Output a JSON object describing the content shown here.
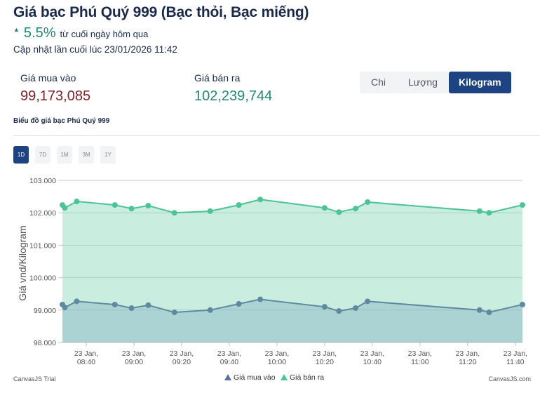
{
  "header": {
    "title": "Giá bạc Phú Quý 999 (Bạc thỏi, Bạc miếng)",
    "change_pct": "5.5%",
    "change_text": "từ cuối ngày hôm qua",
    "updated": "Cập nhật lần cuối lúc 23/01/2026 11:42"
  },
  "prices": {
    "buy_label": "Giá mua vào",
    "buy_value": "99,173,085",
    "sell_label": "Giá bán ra",
    "sell_value": "102,239,744"
  },
  "unit_tabs": [
    {
      "label": "Chi"
    },
    {
      "label": "Lượng"
    },
    {
      "label": "Kilogram",
      "active": true
    }
  ],
  "chart_heading": "Biểu đồ giá bạc Phú Quý 999",
  "range_tabs": [
    {
      "label": "1D",
      "active": true
    },
    {
      "label": "7D"
    },
    {
      "label": "1M"
    },
    {
      "label": "3M"
    },
    {
      "label": "1Y"
    }
  ],
  "chart_data": {
    "type": "area",
    "ylabel": "Giá vnd/Kilogram",
    "ylim": [
      98,
      103
    ],
    "yticks": [
      "98.000",
      "99.000",
      "100.000",
      "101.000",
      "102.000",
      "103.000"
    ],
    "xlim": [
      "08:30",
      "11:43"
    ],
    "xticks": [
      {
        "t": "08:40",
        "l1": "23 Jan,",
        "l2": "08:40"
      },
      {
        "t": "09:00",
        "l1": "23 Jan,",
        "l2": "09:00"
      },
      {
        "t": "09:20",
        "l1": "23 Jan,",
        "l2": "09:20"
      },
      {
        "t": "09:40",
        "l1": "23 Jan,",
        "l2": "09:40"
      },
      {
        "t": "10:00",
        "l1": "23 Jan,",
        "l2": "10:00"
      },
      {
        "t": "10:20",
        "l1": "23 Jan,",
        "l2": "10:20"
      },
      {
        "t": "10:40",
        "l1": "23 Jan,",
        "l2": "10:40"
      },
      {
        "t": "11:00",
        "l1": "23 Jan,",
        "l2": "11:00"
      },
      {
        "t": "11:20",
        "l1": "23 Jan,",
        "l2": "11:20"
      },
      {
        "t": "11:40",
        "l1": "23 Jan,",
        "l2": "11:40"
      }
    ],
    "x": [
      "08:30",
      "08:31",
      "08:36",
      "08:52",
      "08:59",
      "09:06",
      "09:17",
      "09:32",
      "09:44",
      "09:53",
      "10:20",
      "10:26",
      "10:33",
      "10:38",
      "11:25",
      "11:29",
      "11:43"
    ],
    "series": [
      {
        "name": "Giá bán ra",
        "color": "#4cc497",
        "fill": "#c9eee0",
        "values": [
          102.24,
          102.15,
          102.35,
          102.24,
          102.13,
          102.22,
          102.0,
          102.05,
          102.24,
          102.41,
          102.15,
          102.02,
          102.13,
          102.33,
          102.05,
          102.0,
          102.24
        ]
      },
      {
        "name": "Giá mua vào",
        "color": "#5d8aa0",
        "fill": "#acd3d3",
        "values": [
          99.17,
          99.08,
          99.27,
          99.17,
          99.06,
          99.15,
          98.93,
          99.0,
          99.19,
          99.33,
          99.1,
          98.97,
          99.06,
          99.27,
          99.0,
          98.93,
          99.17
        ]
      }
    ],
    "legend": [
      {
        "name": "Giá mua vào",
        "color": "#5b6ea8"
      },
      {
        "name": "Giá bán ra",
        "color": "#4cc497"
      }
    ],
    "legend_position": "bottom",
    "credit_left": "CanvasJS Trial",
    "credit_right": "CanvasJS.com"
  }
}
